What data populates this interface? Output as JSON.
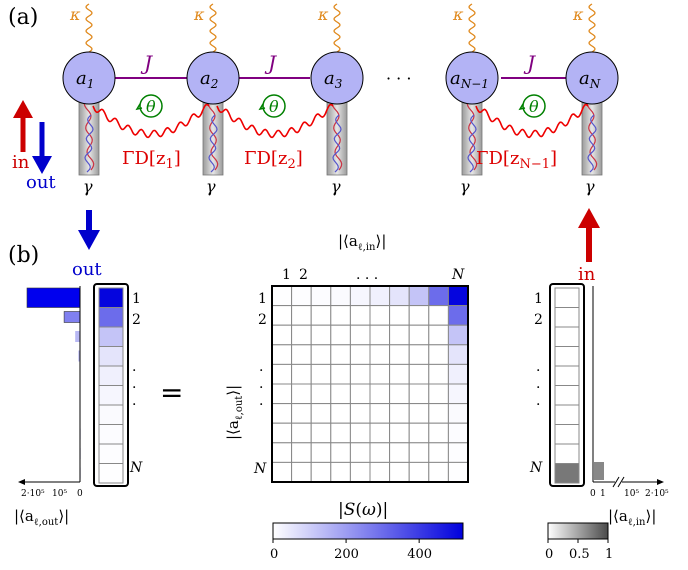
{
  "panel_a": {
    "label": "(a)",
    "kappa": "κ",
    "J": "J",
    "theta": "θ",
    "gamma": "γ",
    "dots": "· · ·",
    "in": "in",
    "out": "out",
    "modes": [
      {
        "base": "a",
        "sub": "1"
      },
      {
        "base": "a",
        "sub": "2"
      },
      {
        "base": "a",
        "sub": "3"
      },
      {
        "base": "a",
        "sub": "N−1"
      },
      {
        "base": "a",
        "sub": "N"
      }
    ],
    "dissipators": [
      {
        "pre": "ΓD[z",
        "sub": "1",
        "post": "]"
      },
      {
        "pre": "ΓD[z",
        "sub": "2",
        "post": "]"
      },
      {
        "pre": "ΓD[z",
        "sub": "N−1",
        "post": "]"
      }
    ]
  },
  "panel_b": {
    "label": "(b)",
    "out": "out",
    "in": "in",
    "equals": "=",
    "row_labels": {
      "first": "1",
      "second": "2",
      "last": "N"
    },
    "vdots": ":",
    "col_labels": {
      "first": "1",
      "second": "2",
      "dots": ". . .",
      "last": "N"
    },
    "top_axis_label": "|⟨a_ℓ,in⟩|",
    "side_axis_label": "|⟨a_ℓ,out⟩|",
    "left_axis_label": "|⟨a_ℓ,out⟩|",
    "right_axis_label": "|⟨a_ℓ,in⟩|",
    "left_ticks": [
      "2·10⁵",
      "10⁵",
      "0"
    ],
    "right_ticks": [
      "0",
      "1",
      "10⁵",
      "2·10⁵"
    ],
    "cbar_main": {
      "label": "|S(ω)|",
      "ticks": [
        "0",
        "200",
        "400"
      ],
      "max": 520,
      "color_low": "#ffffff",
      "color_high": "#0000dd"
    },
    "cbar_in": {
      "ticks": [
        "0",
        "0.5",
        "1"
      ],
      "color_low": "#ffffff",
      "color_high": "#555555"
    },
    "matrix_last_column": [
      510,
      300,
      120,
      55,
      30,
      18,
      10,
      6,
      4,
      3
    ],
    "matrix_first_row": [
      3,
      4,
      6,
      10,
      18,
      30,
      55,
      120,
      300,
      510
    ],
    "out_vector": [
      510,
      300,
      120,
      55,
      30,
      18,
      10,
      6,
      4,
      3
    ],
    "in_vector": [
      0,
      0,
      0,
      0,
      0,
      0,
      0,
      0,
      0,
      1
    ],
    "out_bars": [
      200000,
      60000,
      18000,
      6000,
      2000,
      800,
      300,
      100,
      40,
      10
    ],
    "in_bars": [
      0,
      0,
      0,
      0,
      0,
      0,
      0,
      0,
      0,
      1
    ]
  }
}
